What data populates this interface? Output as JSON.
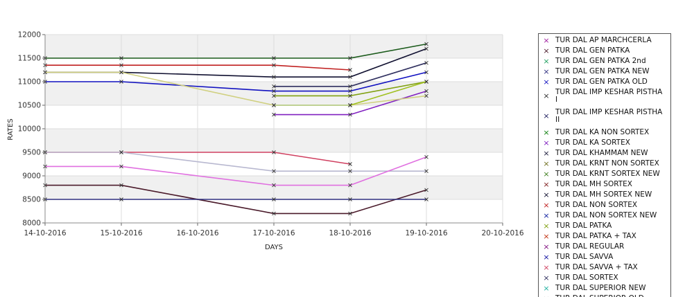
{
  "chart_data": {
    "type": "line",
    "xlabel": "DAYS",
    "ylabel": "RATES",
    "ylim": [
      8000,
      12000
    ],
    "yticks": [
      "8000",
      "8500",
      "9000",
      "9500",
      "10000",
      "10500",
      "11000",
      "11500",
      "12000"
    ],
    "x": [
      "14-10-2016",
      "15-10-2016",
      "16-10-2016",
      "17-10-2016",
      "18-10-2016",
      "19-10-2016",
      "20-10-2016"
    ],
    "grid": "banded",
    "legend_position": "right",
    "series": [
      {
        "name": "TUR DAL AP MARCHCERLA",
        "color": "#a020a0",
        "values": [
          null,
          null,
          null,
          null,
          null,
          null,
          null
        ]
      },
      {
        "name": "TUR DAL GEN PATKA",
        "color": "#4a1a2a",
        "values": [
          8800,
          8800,
          null,
          8200,
          8200,
          8700,
          null
        ]
      },
      {
        "name": "TUR DAL GEN PATKA 2nd",
        "color": "#20a060",
        "values": [
          null,
          null,
          null,
          null,
          null,
          null,
          null
        ]
      },
      {
        "name": "TUR DAL GEN PATKA NEW",
        "color": "#303080",
        "values": [
          8500,
          8500,
          null,
          8500,
          8500,
          8500,
          null
        ]
      },
      {
        "name": "TUR DAL GEN PATKA OLD",
        "color": "#1010c0",
        "values": [
          11000,
          11000,
          null,
          10800,
          10800,
          11200,
          null
        ]
      },
      {
        "name": "TUR DAL IMP KESHAR PISTHA I",
        "color": "#303030",
        "values": [
          null,
          null,
          null,
          null,
          null,
          null,
          null
        ]
      },
      {
        "name": "TUR DAL IMP KESHAR PISTHA II",
        "color": "#202060",
        "values": [
          null,
          null,
          null,
          null,
          null,
          null,
          null
        ]
      },
      {
        "name": "TUR DAL KA NON SORTEX",
        "color": "#108010",
        "values": [
          null,
          null,
          null,
          null,
          null,
          null,
          null
        ]
      },
      {
        "name": "TUR DAL KA SORTEX",
        "color": "#8020c0",
        "values": [
          null,
          null,
          null,
          10300,
          10300,
          10800,
          null
        ]
      },
      {
        "name": "TUR DAL KHAMMAM NEW",
        "color": "#202040",
        "values": [
          null,
          null,
          null,
          null,
          null,
          null,
          null
        ]
      },
      {
        "name": "TUR DAL KRNT NON SORTEX",
        "color": "#707020",
        "values": [
          null,
          null,
          null,
          null,
          null,
          null,
          null
        ]
      },
      {
        "name": "TUR DAL KRNT SORTEX NEW",
        "color": "#408020",
        "values": [
          null,
          null,
          null,
          null,
          null,
          null,
          null
        ]
      },
      {
        "name": "TUR DAL MH SORTEX",
        "color": "#802020",
        "values": [
          null,
          null,
          null,
          null,
          null,
          null,
          null
        ]
      },
      {
        "name": "TUR DAL MH SORTEX NEW",
        "color": "#101030",
        "values": [
          11200,
          11200,
          null,
          11100,
          11100,
          11700,
          null
        ]
      },
      {
        "name": "TUR DAL NON SORTEX",
        "color": "#c02020",
        "values": [
          11350,
          11350,
          null,
          11350,
          11250,
          null,
          null
        ]
      },
      {
        "name": "TUR DAL NON SORTEX NEW",
        "color": "#1020a0",
        "values": [
          null,
          null,
          null,
          null,
          null,
          null,
          null
        ]
      },
      {
        "name": "TUR DAL PATKA",
        "color": "#80a010",
        "values": [
          null,
          null,
          null,
          10700,
          10700,
          11000,
          null
        ]
      },
      {
        "name": "TUR DAL PATKA + TAX",
        "color": "#c03010",
        "values": [
          null,
          null,
          null,
          null,
          null,
          null,
          null
        ]
      },
      {
        "name": "TUR DAL REGULAR",
        "color": "#801080",
        "values": [
          null,
          null,
          null,
          null,
          null,
          null,
          null
        ]
      },
      {
        "name": "TUR DAL SAVVA",
        "color": "#1010a0",
        "values": [
          null,
          null,
          null,
          null,
          null,
          null,
          null
        ]
      },
      {
        "name": "TUR DAL SAVVA + TAX",
        "color": "#d04060",
        "values": [
          9500,
          9500,
          null,
          9500,
          9250,
          null,
          null
        ]
      },
      {
        "name": "TUR DAL SORTEX",
        "color": "#303060",
        "values": [
          null,
          null,
          null,
          10900,
          10900,
          11400,
          null
        ]
      },
      {
        "name": "TUR DAL SUPERIOR NEW",
        "color": "#20b0a0",
        "values": [
          null,
          null,
          null,
          10500,
          10500,
          null,
          null
        ]
      },
      {
        "name": "TUR DAL SUPERIOR OLD",
        "color": "#606060",
        "values": [
          null,
          null,
          null,
          null,
          null,
          null,
          null
        ]
      },
      {
        "name": "",
        "color": "#1a5a1a",
        "values": [
          11500,
          11500,
          null,
          11500,
          11500,
          11800,
          null
        ]
      },
      {
        "name": "",
        "color": "#d0d080",
        "values": [
          11200,
          11200,
          null,
          10500,
          10500,
          10700,
          null
        ]
      },
      {
        "name": "",
        "color": "#b8b8d0",
        "values": [
          9500,
          9500,
          null,
          9100,
          9100,
          9100,
          null
        ]
      },
      {
        "name": "",
        "color": "#e070e0",
        "values": [
          9200,
          9200,
          null,
          8800,
          8800,
          9400,
          null
        ]
      },
      {
        "name": "",
        "color": "#a0c020",
        "values": [
          null,
          null,
          null,
          null,
          10500,
          11000,
          null
        ]
      }
    ]
  }
}
